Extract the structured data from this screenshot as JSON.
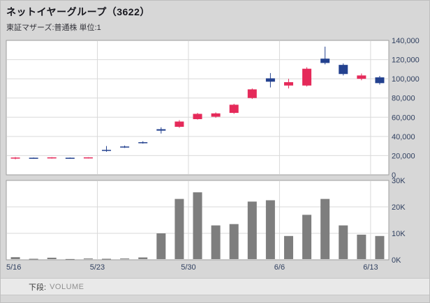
{
  "header": {
    "title": "ネットイヤーグループ（3622）",
    "subtitle": "東証マザーズ:普通株 単位:1"
  },
  "footer": {
    "label": "下段:",
    "value": "VOLUME"
  },
  "colors": {
    "up": "#e52a5a",
    "down": "#23418f",
    "volume_bar": "#7e7e7e",
    "grid": "#d9d9d9",
    "panel_border": "#9e9e9e",
    "panel_bg": "#ffffff",
    "axis_text": "#2f3f5f",
    "background": "#d7d7d7"
  },
  "chart_data": {
    "type": "candlestick",
    "title": "ネットイヤーグループ（3622）",
    "subtitle": "東証マザーズ:普通株 単位:1",
    "lower_pane": "VOLUME",
    "price_axis": {
      "min": 0,
      "max": 140000,
      "tick_step": 20000,
      "tick_labels": [
        "0",
        "20,000",
        "40,000",
        "60,000",
        "80,000",
        "100,000",
        "120,000",
        "140,000"
      ]
    },
    "volume_axis": {
      "min": 0,
      "max": 30000,
      "tick_step": 10000,
      "tick_labels": [
        "0K",
        "10K",
        "20K",
        "30K"
      ]
    },
    "x_labels": [
      {
        "label": "5/16",
        "index": 0
      },
      {
        "label": "5/23",
        "index": 5
      },
      {
        "label": "5/30",
        "index": 10
      },
      {
        "label": "6/6",
        "index": 15
      },
      {
        "label": "6/13",
        "index": 20
      }
    ],
    "week_boundaries": [
      5,
      10,
      15,
      20
    ],
    "candles": [
      {
        "date": "5/16",
        "open": 17000,
        "high": 18500,
        "low": 16200,
        "close": 18000,
        "volume": 1000
      },
      {
        "date": "5/17",
        "open": 17800,
        "high": 18000,
        "low": 16800,
        "close": 17000,
        "volume": 400
      },
      {
        "date": "5/18",
        "open": 17200,
        "high": 18400,
        "low": 16900,
        "close": 18200,
        "volume": 800
      },
      {
        "date": "5/19",
        "open": 17800,
        "high": 18000,
        "low": 16800,
        "close": 17200,
        "volume": 300
      },
      {
        "date": "5/20",
        "open": 17300,
        "high": 18300,
        "low": 17000,
        "close": 18200,
        "volume": 500
      },
      {
        "date": "5/23",
        "open": 26000,
        "high": 30000,
        "low": 24000,
        "close": 25000,
        "volume": 400
      },
      {
        "date": "5/24",
        "open": 29500,
        "high": 30500,
        "low": 28000,
        "close": 28500,
        "volume": 500
      },
      {
        "date": "5/25",
        "open": 34000,
        "high": 35000,
        "low": 32500,
        "close": 33000,
        "volume": 900
      },
      {
        "date": "5/26",
        "open": 47500,
        "high": 49500,
        "low": 43000,
        "close": 46000,
        "volume": 10000
      },
      {
        "date": "5/27",
        "open": 50000,
        "high": 57000,
        "low": 49000,
        "close": 55500,
        "volume": 23000
      },
      {
        "date": "5/30",
        "open": 58000,
        "high": 64500,
        "low": 57500,
        "close": 63500,
        "volume": 25500
      },
      {
        "date": "5/31",
        "open": 60500,
        "high": 65000,
        "low": 59500,
        "close": 64000,
        "volume": 13000
      },
      {
        "date": "6/1",
        "open": 64500,
        "high": 74000,
        "low": 63500,
        "close": 73000,
        "volume": 13500
      },
      {
        "date": "6/2",
        "open": 80000,
        "high": 90000,
        "low": 79000,
        "close": 89000,
        "volume": 22000
      },
      {
        "date": "6/3",
        "open": 100500,
        "high": 106000,
        "low": 91000,
        "close": 97000,
        "volume": 22500
      },
      {
        "date": "6/6",
        "open": 93000,
        "high": 100000,
        "low": 90000,
        "close": 96500,
        "volume": 9000
      },
      {
        "date": "6/7",
        "open": 93000,
        "high": 112000,
        "low": 92000,
        "close": 110500,
        "volume": 17000
      },
      {
        "date": "6/8",
        "open": 121000,
        "high": 133500,
        "low": 115000,
        "close": 116500,
        "volume": 23000
      },
      {
        "date": "6/9",
        "open": 114500,
        "high": 116000,
        "low": 103500,
        "close": 105000,
        "volume": 13000
      },
      {
        "date": "6/10",
        "open": 100000,
        "high": 105500,
        "low": 98500,
        "close": 103500,
        "volume": 9500
      },
      {
        "date": "6/13",
        "open": 101500,
        "high": 103000,
        "low": 94000,
        "close": 95500,
        "volume": 9000
      }
    ]
  }
}
